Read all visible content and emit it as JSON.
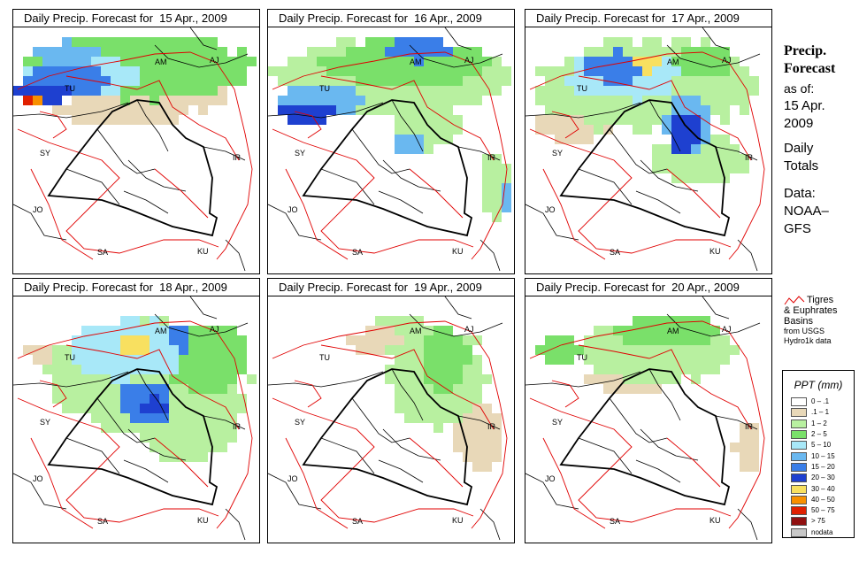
{
  "title_prefix": "Daily Precip. Forecast for",
  "panels": [
    {
      "date": "15 Apr., 2009"
    },
    {
      "date": "16 Apr., 2009"
    },
    {
      "date": "17 Apr., 2009"
    },
    {
      "date": "18 Apr., 2009"
    },
    {
      "date": "19 Apr., 2009"
    },
    {
      "date": "20 Apr., 2009"
    }
  ],
  "map_labels": {
    "AM": "AM",
    "AJ": "AJ",
    "TU": "TU",
    "SY": "SY",
    "IR": "IR",
    "JO": "JO",
    "SA": "SA",
    "KU": "KU"
  },
  "side": {
    "title_line1": "Precip.",
    "title_line2": "Forecast",
    "asof_label": "as of:",
    "asof_date_line1": "15 Apr.",
    "asof_date_line2": "2009",
    "totals_line1": "Daily",
    "totals_line2": "Totals",
    "data_line1": "Data:",
    "data_line2": "NOAA–",
    "data_line3": "GFS"
  },
  "basins": {
    "line1": "Tigres",
    "line2": "& Euphrates",
    "line3": "Basins",
    "line4": "from USGS",
    "line5": "Hydro1k data",
    "color": "#e00000"
  },
  "legend": {
    "title": "PPT (mm)",
    "items": [
      {
        "label": "0 – .1",
        "color": "#ffffff"
      },
      {
        "label": ".1 – 1",
        "color": "#e8d8b8"
      },
      {
        "label": "1 – 2",
        "color": "#b8f0a0"
      },
      {
        "label": "2 – 5",
        "color": "#7ae06a"
      },
      {
        "label": "5 – 10",
        "color": "#a8e8f8"
      },
      {
        "label": "10 – 15",
        "color": "#6ab8f0"
      },
      {
        "label": "15 – 20",
        "color": "#3a7ee8"
      },
      {
        "label": "20 – 30",
        "color": "#1e40d0"
      },
      {
        "label": "30 – 40",
        "color": "#f8e060"
      },
      {
        "label": "40 – 50",
        "color": "#f89000"
      },
      {
        "label": "50 – 75",
        "color": "#e02000"
      },
      {
        "label": "> 75",
        "color": "#901010"
      },
      {
        "label": "nodata",
        "color": "#c8c8c8"
      }
    ]
  }
}
